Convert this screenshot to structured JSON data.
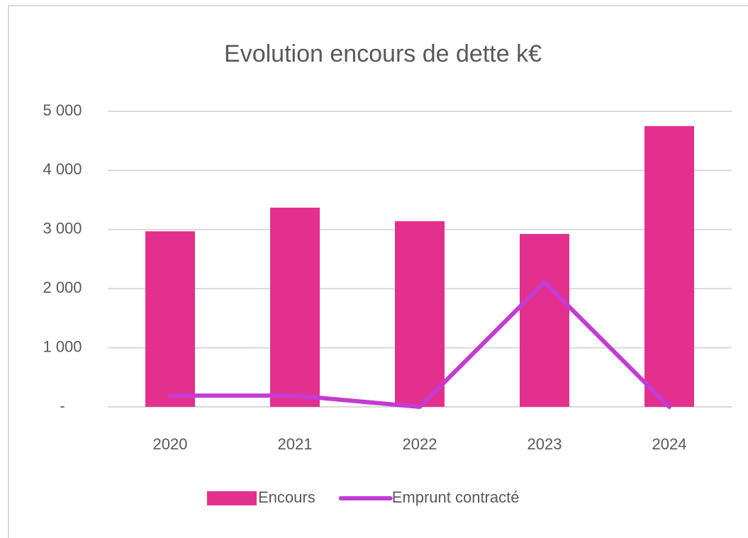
{
  "chart_data": {
    "type": "bar",
    "title": "Evolution encours de dette k€",
    "categories": [
      "2020",
      "2021",
      "2022",
      "2023",
      "2024"
    ],
    "series": [
      {
        "name": "Encours",
        "type": "bar",
        "color": "#e3308f",
        "values": [
          2970,
          3370,
          3140,
          2925,
          4750
        ]
      },
      {
        "name": "Emprunt contracté",
        "type": "line",
        "color": "#c43bd2",
        "values": [
          190,
          190,
          0,
          2110,
          0
        ]
      }
    ],
    "ylim": [
      0,
      5000
    ],
    "yticks": [
      {
        "value": 0,
        "label": "-"
      },
      {
        "value": 1000,
        "label": "1 000"
      },
      {
        "value": 2000,
        "label": "2 000"
      },
      {
        "value": 3000,
        "label": "3 000"
      },
      {
        "value": 4000,
        "label": "4 000"
      },
      {
        "value": 5000,
        "label": "5 000"
      }
    ],
    "grid": true,
    "legend": "bottom"
  }
}
